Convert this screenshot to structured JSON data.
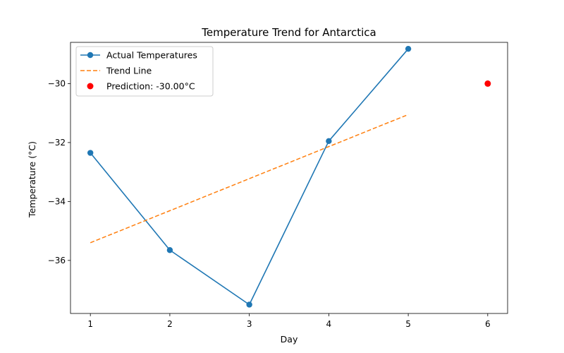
{
  "chart_data": {
    "type": "line",
    "title": "Temperature Trend for Antarctica",
    "xlabel": "Day",
    "ylabel": "Temperature (°C)",
    "xlim": [
      0.75,
      6.25
    ],
    "ylim": [
      -37.8,
      -28.6
    ],
    "xticks": [
      1,
      2,
      3,
      4,
      5,
      6
    ],
    "xtick_labels": [
      "1",
      "2",
      "3",
      "4",
      "5",
      "6"
    ],
    "yticks": [
      -36,
      -34,
      -32,
      -30
    ],
    "ytick_labels": [
      "−36",
      "−34",
      "−32",
      "−30"
    ],
    "legend_position": "top-left",
    "grid": false,
    "series": [
      {
        "name": "Actual Temperatures",
        "kind": "line-markers",
        "color": "#1f77b4",
        "x": [
          1,
          2,
          3,
          4,
          5
        ],
        "y": [
          -32.35,
          -35.65,
          -37.5,
          -31.95,
          -28.82
        ]
      },
      {
        "name": "Trend Line",
        "kind": "dashed-line",
        "color": "#ff7f0e",
        "x": [
          1,
          5
        ],
        "y": [
          -35.4,
          -31.05
        ]
      },
      {
        "name": "Prediction: -30.00°C",
        "kind": "scatter",
        "color": "#ff0000",
        "x": [
          6
        ],
        "y": [
          -30.0
        ]
      }
    ]
  }
}
